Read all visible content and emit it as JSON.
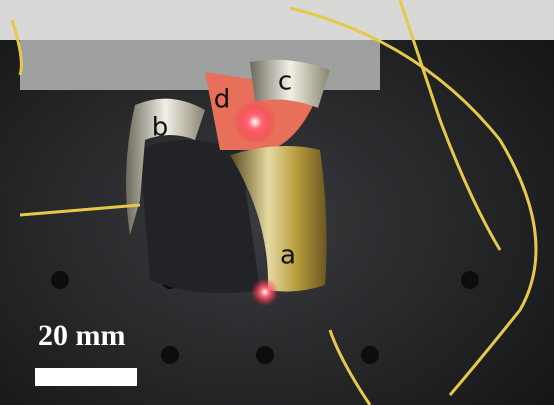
{
  "panel_labels": [
    "a",
    "b",
    "c",
    "d"
  ],
  "scale_bar": {
    "label": "20 mm"
  }
}
